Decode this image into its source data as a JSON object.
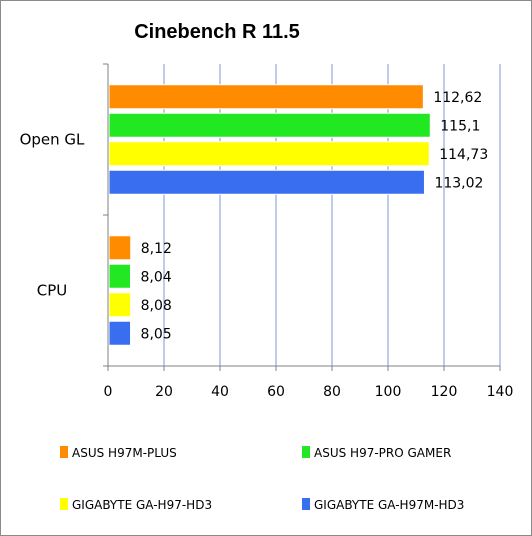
{
  "chart_data": {
    "type": "bar",
    "orientation": "horizontal",
    "title": "Cinebench R 11.5",
    "categories": [
      "Open GL",
      "CPU"
    ],
    "series": [
      {
        "name": "ASUS H97M-PLUS",
        "color": "#FF8C00",
        "values": [
          112.62,
          8.12
        ],
        "labels": [
          "112,62",
          "8,12"
        ]
      },
      {
        "name": "ASUS H97-PRO GAMER",
        "color": "#22E822",
        "values": [
          115.1,
          8.04
        ],
        "labels": [
          "115,1",
          "8,04"
        ]
      },
      {
        "name": "GIGABYTE GA-H97-HD3",
        "color": "#FFFF00",
        "values": [
          114.73,
          8.08
        ],
        "labels": [
          "114,73",
          "8,08"
        ]
      },
      {
        "name": "GIGABYTE GA-H97M-HD3",
        "color": "#3A6EF0",
        "values": [
          113.02,
          8.05
        ],
        "labels": [
          "113,02",
          "8,05"
        ]
      }
    ],
    "xlim": [
      0,
      140
    ],
    "xticks": [
      0,
      20,
      40,
      60,
      80,
      100,
      120,
      140
    ],
    "xtick_labels": [
      "0",
      "20",
      "40",
      "60",
      "80",
      "100",
      "120",
      "140"
    ],
    "grid": true,
    "legend_position": "bottom"
  }
}
